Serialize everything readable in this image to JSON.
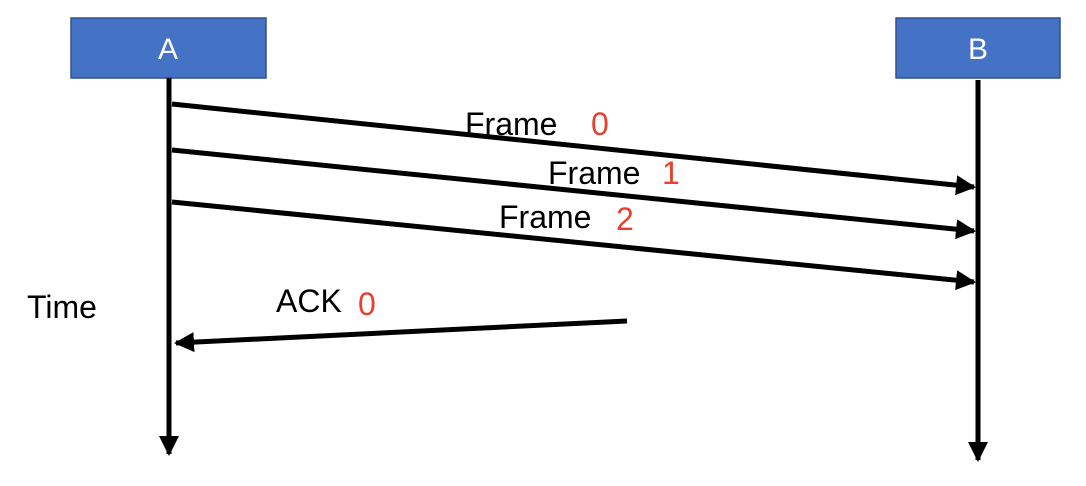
{
  "colors": {
    "node_fill": "#4472c4",
    "node_border": "#2f528f",
    "line": "#000000",
    "sequence_number": "#e8402c"
  },
  "nodes": {
    "a": {
      "label": "A"
    },
    "b": {
      "label": "B"
    }
  },
  "time_label": "Time",
  "messages": {
    "frame0": {
      "label": "Frame",
      "seq": "0",
      "direction": "A to B"
    },
    "frame1": {
      "label": "Frame",
      "seq": "1",
      "direction": "A to B"
    },
    "frame2": {
      "label": "Frame",
      "seq": "2",
      "direction": "A to B"
    },
    "ack0": {
      "label": "ACK",
      "seq": "0",
      "direction": "B to A"
    }
  }
}
